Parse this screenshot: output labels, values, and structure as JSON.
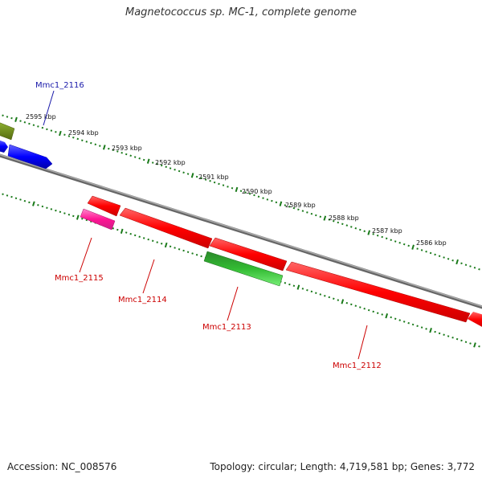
{
  "title": "Magnetococcus sp. MC-1, complete genome",
  "accession": "Accession: NC_008576",
  "summary": "Topology: circular; Length: 4,719,581 bp; Genes: 3,772",
  "ruler_labels": [
    "2595 kbp",
    "2594 kbp",
    "2593 kbp",
    "2592 kbp",
    "2591 kbp",
    "2590 kbp",
    "2589 kbp",
    "2588 kbp",
    "2587 kbp",
    "2586 kbp"
  ],
  "colors": {
    "forward_gene": "#1a1aff",
    "reverse_gene": "#ff0000",
    "rna_like": "#ff3399",
    "green_feature": "#33bb33",
    "olive_feature": "#6b8e23",
    "backbone": "#888888",
    "ruler_ticks": "#1a7a1a",
    "forward_label": "#1a1aaa",
    "reverse_label": "#cc0000"
  },
  "gene_labels": {
    "mmc1_2116": "Mmc1_2116",
    "mmc1_2115": "Mmc1_2115",
    "mmc1_2114": "Mmc1_2114",
    "mmc1_2113": "Mmc1_2113",
    "mmc1_2112": "Mmc1_2112"
  }
}
